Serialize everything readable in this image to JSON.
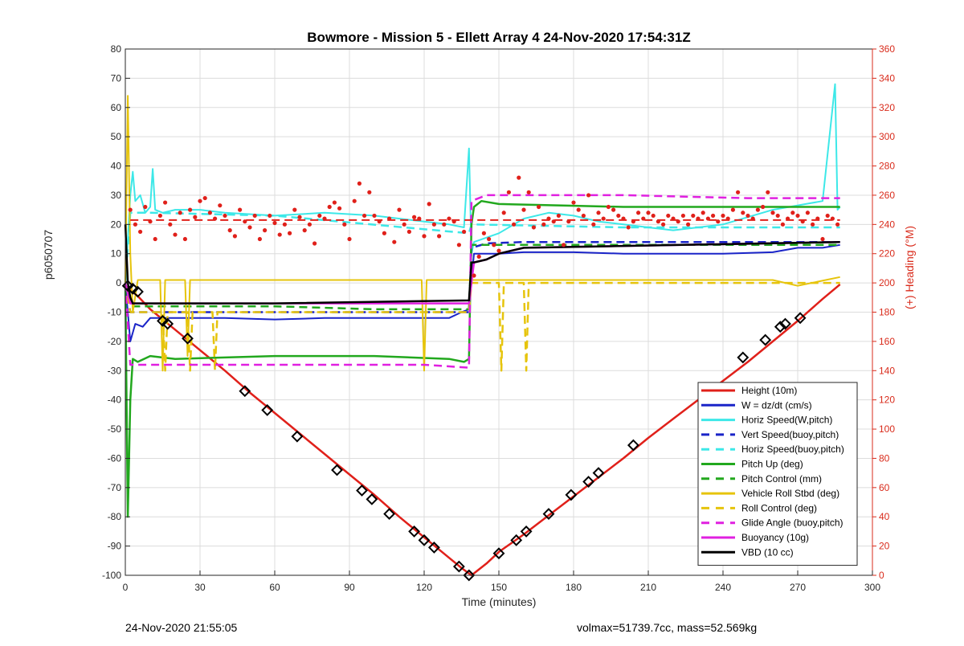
{
  "title": "Bowmore - Mission 5 - Ellett Array 4 24-Nov-2020 17:54:31Z",
  "footer": {
    "timestamp": "24-Nov-2020 21:55:05",
    "stats": "volmax=51739.7cc, mass=52.569kg"
  },
  "colors": {
    "red": "#e0201a",
    "blue": "#1a24c8",
    "cyan": "#3de8e8",
    "green": "#22a81e",
    "yellow": "#e6c40c",
    "magenta": "#e020e0",
    "black": "#000000",
    "right_axis": "#d92b1b"
  },
  "chart_data": {
    "type": "line",
    "title": "Bowmore - Mission 5 - Ellett Array 4 24-Nov-2020 17:54:31Z",
    "xlabel": "Time (minutes)",
    "ylabel": "p6050707",
    "y2label": "(+) Heading (°M)",
    "xlim": [
      0,
      300
    ],
    "ylim": [
      -100,
      80
    ],
    "y2lim": [
      0,
      360
    ],
    "xticks": [
      0,
      30,
      60,
      90,
      120,
      150,
      180,
      210,
      240,
      270,
      300
    ],
    "yticks": [
      -100,
      -90,
      -80,
      -70,
      -60,
      -50,
      -40,
      -30,
      -20,
      -10,
      0,
      10,
      20,
      30,
      40,
      50,
      60,
      70,
      80
    ],
    "y2ticks": [
      0,
      20,
      40,
      60,
      80,
      100,
      120,
      140,
      160,
      180,
      200,
      220,
      240,
      260,
      280,
      300,
      320,
      340,
      360
    ],
    "grid": true,
    "legend_location": "bottom-right",
    "series": [
      {
        "name": "Height (10m)",
        "color": "#e0201a",
        "style": "solid",
        "width": 2.5,
        "x": [
          0,
          2,
          5,
          10,
          20,
          30,
          40,
          50,
          60,
          70,
          80,
          90,
          100,
          110,
          120,
          130,
          135,
          139,
          145,
          150,
          160,
          170,
          180,
          190,
          200,
          210,
          220,
          230,
          240,
          250,
          260,
          270,
          280,
          287
        ],
        "y": [
          -1,
          -2.5,
          -4.5,
          -9,
          -16,
          -23,
          -30,
          -37.5,
          -44.5,
          -51.5,
          -58.5,
          -65.5,
          -72.5,
          -80,
          -87,
          -94,
          -97.5,
          -100,
          -96,
          -92,
          -86,
          -79.5,
          -73,
          -66.5,
          -60,
          -53,
          -46.5,
          -40,
          -33.5,
          -27,
          -20,
          -13,
          -5.5,
          -0.5
        ]
      },
      {
        "name": "W = dz/dt (cm/s)",
        "color": "#1a24c8",
        "style": "solid",
        "width": 2,
        "x": [
          0,
          2,
          4,
          7,
          10,
          20,
          40,
          60,
          80,
          100,
          120,
          130,
          135,
          138,
          140,
          150,
          160,
          180,
          200,
          220,
          240,
          260,
          270,
          280,
          287
        ],
        "y": [
          0,
          -20,
          -14,
          -15,
          -12,
          -12,
          -12,
          -12.5,
          -12,
          -12,
          -12,
          -12,
          -10,
          -9,
          10,
          10,
          10.5,
          10.5,
          10,
          10,
          10,
          10.5,
          12,
          12,
          13
        ]
      },
      {
        "name": "Horiz Speed(W,pitch)",
        "color": "#3de8e8",
        "style": "solid",
        "width": 2,
        "x": [
          0,
          2,
          3,
          4,
          6,
          8,
          10,
          11,
          12,
          15,
          20,
          30,
          40,
          60,
          80,
          100,
          120,
          130,
          136,
          138,
          139,
          140,
          150,
          160,
          170,
          180,
          190,
          200,
          210,
          220,
          240,
          260,
          280,
          285,
          286,
          287
        ],
        "y": [
          0,
          30,
          38,
          28,
          30,
          24,
          26,
          39,
          25,
          24,
          25,
          25,
          24,
          23,
          24,
          23,
          21,
          20,
          19,
          46,
          10,
          14,
          17,
          22,
          24,
          23,
          21,
          20,
          19,
          18,
          20,
          25,
          28,
          68,
          25,
          26
        ]
      },
      {
        "name": "Vert Speed(buoy,pitch)",
        "color": "#1a24c8",
        "style": "dashed",
        "width": 2.5,
        "x": [
          0,
          2,
          3,
          10,
          138,
          139,
          145,
          160,
          287
        ],
        "y": [
          0,
          -10,
          -10,
          -10,
          -10,
          12,
          13.5,
          14,
          14
        ]
      },
      {
        "name": "Horiz Speed(buoy,pitch)",
        "color": "#3de8e8",
        "style": "dashed",
        "width": 2.5,
        "x": [
          0,
          2,
          10,
          60,
          138,
          139,
          200,
          287
        ],
        "y": [
          0,
          24,
          24,
          23,
          17,
          20,
          19,
          19
        ]
      },
      {
        "name": "Pitch Up (deg)",
        "color": "#22a81e",
        "style": "solid",
        "width": 2.5,
        "x": [
          0,
          1,
          2,
          3,
          5,
          10,
          20,
          60,
          100,
          130,
          136,
          138,
          139,
          140,
          143,
          150,
          200,
          287
        ],
        "y": [
          0,
          -80,
          -40,
          -26,
          -27,
          -25,
          -26,
          -25,
          -25,
          -26,
          -27,
          -26,
          20,
          26,
          28,
          27,
          26,
          26
        ]
      },
      {
        "name": "Pitch Control (mm)",
        "color": "#22a81e",
        "style": "dashed",
        "width": 2.5,
        "x": [
          0,
          2,
          10,
          60,
          100,
          138,
          139,
          160,
          287
        ],
        "y": [
          0,
          -8,
          -8,
          -8,
          -9,
          -9,
          13,
          13,
          13
        ]
      },
      {
        "name": "Vehicle Roll Stbd (deg)",
        "color": "#e6c40c",
        "style": "solid",
        "width": 2,
        "x": [
          0,
          1,
          2,
          3,
          5,
          10,
          14,
          15,
          16,
          20,
          24,
          25,
          26,
          30,
          60,
          80,
          90,
          100,
          119,
          120,
          121,
          122,
          130,
          138,
          139,
          140,
          150,
          160,
          200,
          220,
          240,
          260,
          270,
          287
        ],
        "y": [
          0,
          64,
          10,
          -10,
          1,
          1,
          1,
          -30,
          1,
          1,
          1,
          -25,
          1,
          1,
          1,
          1,
          1,
          1,
          1,
          -30,
          1,
          1,
          1,
          1,
          1,
          1,
          1,
          1,
          1,
          1,
          1,
          1,
          -1,
          2
        ]
      },
      {
        "name": "Roll Control (deg)",
        "color": "#e6c40c",
        "style": "dashed",
        "width": 2.5,
        "x": [
          0,
          2,
          10,
          15,
          16,
          17,
          25,
          26,
          27,
          35,
          36,
          37,
          138,
          139,
          150,
          151,
          152,
          160,
          161,
          162,
          287
        ],
        "y": [
          0,
          -10,
          -10,
          -10,
          -30,
          -10,
          -10,
          -30,
          -10,
          -10,
          -30,
          -10,
          -10,
          0,
          0,
          -30,
          0,
          0,
          -30,
          0,
          0
        ]
      },
      {
        "name": "Glide Angle (buoy,pitch)",
        "color": "#e020e0",
        "style": "dashed",
        "width": 2.5,
        "x": [
          0,
          2,
          10,
          40,
          80,
          120,
          138,
          139,
          145,
          200,
          250,
          287
        ],
        "y": [
          0,
          -28,
          -28,
          -28,
          -28,
          -28,
          -29,
          28,
          30,
          30,
          29,
          29
        ]
      },
      {
        "name": "Buoyancy (10g)",
        "color": "#e020e0",
        "style": "solid",
        "width": 2.5,
        "x": [
          0,
          2,
          3,
          10,
          138,
          140,
          145,
          150,
          160,
          287
        ],
        "y": [
          0,
          -7,
          -7,
          -7,
          -7,
          7,
          8,
          10,
          12,
          14
        ]
      },
      {
        "name": "VBD (10 cc)",
        "color": "#000000",
        "style": "solid",
        "width": 2.5,
        "x": [
          0,
          1,
          2,
          3,
          10,
          60,
          138,
          139,
          140,
          145,
          150,
          160,
          287
        ],
        "y": [
          20,
          0,
          -5,
          -7,
          -7,
          -7,
          -6,
          7,
          7,
          8,
          10,
          12,
          14
        ]
      },
      {
        "name": "Heading",
        "color": "#e0201a",
        "style": "dots",
        "axis": "right",
        "x": [
          2,
          4,
          6,
          8,
          10,
          12,
          14,
          16,
          18,
          20,
          22,
          24,
          26,
          28,
          30,
          32,
          34,
          36,
          38,
          40,
          42,
          44,
          46,
          48,
          50,
          52,
          54,
          56,
          58,
          60,
          62,
          64,
          66,
          68,
          70,
          72,
          74,
          76,
          78,
          80,
          82,
          84,
          86,
          88,
          90,
          92,
          94,
          96,
          98,
          100,
          102,
          104,
          106,
          108,
          110,
          112,
          114,
          116,
          118,
          120,
          122,
          124,
          126,
          128,
          130,
          132,
          134,
          136,
          140,
          142,
          144,
          146,
          148,
          150,
          152,
          154,
          156,
          158,
          160,
          162,
          164,
          166,
          168,
          170,
          172,
          174,
          176,
          178,
          180,
          182,
          184,
          186,
          188,
          190,
          192,
          194,
          196,
          198,
          200,
          202,
          204,
          206,
          208,
          210,
          212,
          214,
          216,
          218,
          220,
          222,
          224,
          226,
          228,
          230,
          232,
          234,
          236,
          238,
          240,
          242,
          244,
          246,
          248,
          250,
          252,
          254,
          256,
          258,
          260,
          262,
          264,
          266,
          268,
          270,
          272,
          274,
          276,
          278,
          280,
          282,
          284,
          286
        ],
        "y": [
          250,
          240,
          235,
          252,
          242,
          230,
          246,
          255,
          240,
          233,
          248,
          230,
          250,
          245,
          256,
          258,
          248,
          244,
          253,
          246,
          236,
          232,
          250,
          242,
          238,
          246,
          230,
          236,
          246,
          241,
          233,
          240,
          234,
          250,
          245,
          236,
          240,
          227,
          246,
          244,
          252,
          255,
          251,
          240,
          230,
          256,
          268,
          246,
          262,
          246,
          242,
          234,
          244,
          228,
          250,
          240,
          235,
          245,
          244,
          232,
          254,
          240,
          232,
          240,
          244,
          242,
          226,
          235,
          205,
          218,
          234,
          230,
          226,
          222,
          248,
          262,
          240,
          272,
          250,
          262,
          238,
          252,
          240,
          244,
          242,
          246,
          226,
          242,
          255,
          250,
          246,
          260,
          240,
          248,
          244,
          252,
          250,
          246,
          244,
          238,
          242,
          248,
          244,
          248,
          246,
          242,
          240,
          246,
          244,
          242,
          246,
          240,
          246,
          244,
          248,
          244,
          246,
          242,
          246,
          244,
          250,
          262,
          248,
          246,
          244,
          250,
          252,
          262,
          248,
          246,
          240,
          244,
          248,
          246,
          242,
          248,
          240,
          244,
          230,
          246,
          244,
          240
        ]
      },
      {
        "name": "Heading mean",
        "color": "#e0201a",
        "style": "dashed",
        "axis": "right",
        "x": [
          2,
          287
        ],
        "y": [
          243,
          243
        ]
      },
      {
        "name": "Height markers",
        "color": "#000000",
        "style": "diamond-markers",
        "x": [
          1,
          3,
          5,
          15,
          17,
          25,
          48,
          57,
          69,
          85,
          95,
          99,
          106,
          116,
          120,
          124,
          134,
          138,
          150,
          157,
          161,
          170,
          179,
          186,
          190,
          204,
          248,
          257,
          263,
          265,
          271
        ],
        "y": [
          -1,
          -2,
          -3,
          -13,
          -14,
          -19,
          -37,
          -43.5,
          -52.5,
          -64,
          -71,
          -74,
          -79,
          -85,
          -88,
          -90.5,
          -97,
          -100,
          -92.5,
          -88,
          -85,
          -79,
          -72.5,
          -68,
          -65,
          -55.5,
          -25.5,
          -19.5,
          -15,
          -14,
          -12
        ]
      }
    ]
  }
}
